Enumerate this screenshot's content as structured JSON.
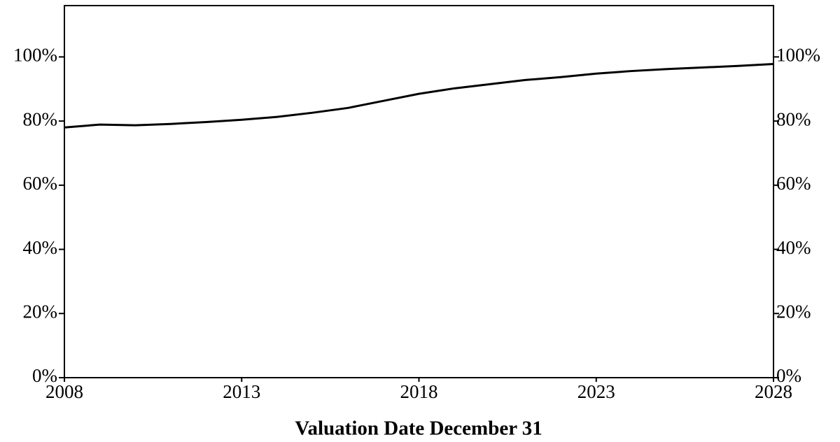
{
  "chart_data": {
    "type": "line",
    "x_label": "Valuation Date December 31",
    "x": [
      2008,
      2009,
      2010,
      2011,
      2012,
      2013,
      2014,
      2015,
      2016,
      2017,
      2018,
      2019,
      2020,
      2021,
      2022,
      2023,
      2024,
      2025,
      2026,
      2027,
      2028
    ],
    "series": [
      {
        "color": "#000000",
        "values": [
          78.0,
          78.9,
          78.7,
          79.1,
          79.7,
          80.4,
          81.3,
          82.6,
          84.1,
          86.3,
          88.5,
          90.2,
          91.5,
          92.8,
          93.7,
          94.8,
          95.6,
          96.2,
          96.7,
          97.2,
          97.8
        ]
      }
    ],
    "xlim": [
      2008,
      2028
    ],
    "xticks": [
      2008,
      2013,
      2018,
      2023,
      2028
    ],
    "ylim": [
      0,
      116
    ],
    "yticks": [
      {
        "value": 0,
        "label": "0%"
      },
      {
        "value": 20,
        "label": "20%"
      },
      {
        "value": 40,
        "label": "40%"
      },
      {
        "value": 60,
        "label": "60%"
      },
      {
        "value": 80,
        "label": "80%"
      },
      {
        "value": 100,
        "label": "100%"
      }
    ],
    "y2lim": [
      0,
      116
    ],
    "y2ticks": [
      {
        "value": 0,
        "label": "0%"
      },
      {
        "value": 20,
        "label": "20%"
      },
      {
        "value": 40,
        "label": "40%"
      },
      {
        "value": 60,
        "label": "60%"
      },
      {
        "value": 80,
        "label": "80%"
      },
      {
        "value": 100,
        "label": "100%"
      }
    ],
    "grid": false
  }
}
